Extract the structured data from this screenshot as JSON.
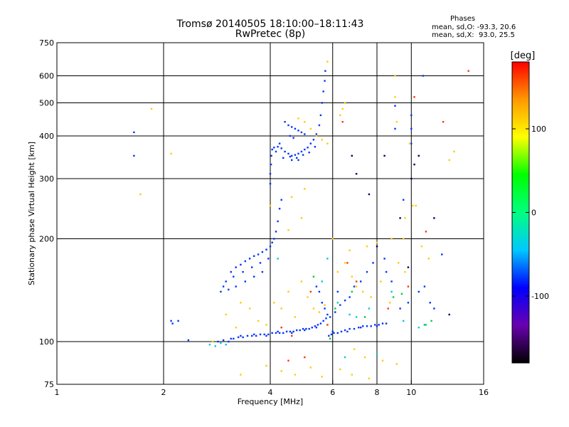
{
  "header": {
    "title_line1": "Tromsø 20140505 18:10:00–18:11:43",
    "title_line2": "RwPretec (8p)"
  },
  "phase_info": {
    "heading": "Phases",
    "line_o": "mean, sd,O: -93.3, 20.6",
    "line_x": "mean, sd,X:  93.0, 25.5"
  },
  "chart_data": {
    "type": "scatter",
    "xlabel": "Frequency [MHz]",
    "ylabel": "Stationary phase Virtual Height [km]",
    "x_scale": "log",
    "y_scale": "log",
    "xlim": [
      1,
      16
    ],
    "ylim": [
      75,
      750
    ],
    "x_ticks": [
      {
        "v": 1,
        "label": "1"
      },
      {
        "v": 2,
        "label": "2"
      },
      {
        "v": 4,
        "label": "4"
      },
      {
        "v": 6,
        "label": "6"
      },
      {
        "v": 8,
        "label": "8"
      },
      {
        "v": 10,
        "label": "10"
      },
      {
        "v": 16,
        "label": "16"
      }
    ],
    "x_gridlines": [
      2,
      4,
      6,
      8,
      10
    ],
    "y_ticks": [
      {
        "v": 75,
        "label": "75"
      },
      {
        "v": 100,
        "label": "100"
      },
      {
        "v": 200,
        "label": "200"
      },
      {
        "v": 300,
        "label": "300"
      },
      {
        "v": 400,
        "label": "400"
      },
      {
        "v": 500,
        "label": "500"
      },
      {
        "v": 600,
        "label": "600"
      },
      {
        "v": 750,
        "label": "750"
      }
    ],
    "y_gridlines": [
      100,
      200,
      300,
      400,
      500,
      600
    ],
    "grid": true,
    "colorbar": {
      "label": "[deg]",
      "range": [
        -180,
        180
      ],
      "ticks": [
        {
          "v": 100,
          "label": "100"
        },
        {
          "v": 0,
          "label": "0"
        },
        {
          "v": -100,
          "label": "-100"
        }
      ],
      "colors": [
        "#000000",
        "#6a00b0",
        "#0000ff",
        "#00c8ff",
        "#00ff80",
        "#00ff00",
        "#ffff00",
        "#ff9900",
        "#ff0000"
      ]
    },
    "series": [
      {
        "name": "O",
        "color": "#0033ff",
        "points": [
          [
            2.85,
            100
          ],
          [
            2.95,
            101
          ],
          [
            3.05,
            100
          ],
          [
            3.15,
            102
          ],
          [
            3.25,
            103
          ],
          [
            3.35,
            103
          ],
          [
            3.45,
            104
          ],
          [
            3.55,
            104
          ],
          [
            3.65,
            104
          ],
          [
            3.75,
            105
          ],
          [
            3.85,
            105
          ],
          [
            3.95,
            105
          ],
          [
            4.05,
            106
          ],
          [
            4.15,
            106
          ],
          [
            4.25,
            106
          ],
          [
            4.35,
            106
          ],
          [
            4.45,
            107
          ],
          [
            4.55,
            107
          ],
          [
            4.65,
            107
          ],
          [
            4.75,
            108
          ],
          [
            4.85,
            108
          ],
          [
            4.95,
            109
          ],
          [
            5.05,
            109
          ],
          [
            5.15,
            109
          ],
          [
            5.25,
            110
          ],
          [
            5.35,
            111
          ],
          [
            5.45,
            112
          ],
          [
            5.55,
            113
          ],
          [
            5.65,
            115
          ],
          [
            5.75,
            117
          ],
          [
            5.85,
            104
          ],
          [
            5.95,
            105
          ],
          [
            6.05,
            106
          ],
          [
            6.2,
            106
          ],
          [
            6.35,
            107
          ],
          [
            6.5,
            108
          ],
          [
            6.7,
            109
          ],
          [
            6.9,
            109
          ],
          [
            7.1,
            110
          ],
          [
            7.3,
            111
          ],
          [
            7.5,
            111
          ],
          [
            7.7,
            111
          ],
          [
            7.9,
            112
          ],
          [
            8.1,
            112
          ],
          [
            8.3,
            113
          ],
          [
            8.5,
            113
          ],
          [
            3.1,
            102
          ],
          [
            3.3,
            104
          ],
          [
            3.6,
            105
          ],
          [
            3.9,
            104
          ],
          [
            4.2,
            107
          ],
          [
            4.6,
            106
          ],
          [
            5.0,
            108
          ],
          [
            5.4,
            110
          ],
          [
            6.0,
            107
          ],
          [
            6.6,
            107
          ],
          [
            7.2,
            110
          ],
          [
            8.0,
            111
          ],
          [
            3.1,
            160
          ],
          [
            3.2,
            165
          ],
          [
            3.3,
            168
          ],
          [
            3.4,
            172
          ],
          [
            3.5,
            175
          ],
          [
            3.6,
            178
          ],
          [
            3.7,
            180
          ],
          [
            3.8,
            183
          ],
          [
            3.9,
            186
          ],
          [
            4.0,
            190
          ],
          [
            4.05,
            195
          ],
          [
            4.1,
            200
          ],
          [
            4.15,
            210
          ],
          [
            4.2,
            225
          ],
          [
            4.25,
            245
          ],
          [
            4.3,
            260
          ],
          [
            3.0,
            150
          ],
          [
            3.15,
            155
          ],
          [
            3.35,
            160
          ],
          [
            3.55,
            165
          ],
          [
            3.75,
            170
          ],
          [
            3.95,
            175
          ],
          [
            3.2,
            145
          ],
          [
            3.4,
            150
          ],
          [
            3.6,
            155
          ],
          [
            3.8,
            160
          ],
          [
            2.95,
            145
          ],
          [
            2.9,
            140
          ],
          [
            3.05,
            142
          ],
          [
            4.0,
            290
          ],
          [
            4.0,
            310
          ],
          [
            4.02,
            330
          ],
          [
            4.03,
            350
          ],
          [
            4.05,
            365
          ],
          [
            4.1,
            370
          ],
          [
            4.2,
            372
          ],
          [
            4.3,
            368
          ],
          [
            4.4,
            360
          ],
          [
            4.5,
            355
          ],
          [
            4.6,
            350
          ],
          [
            4.7,
            352
          ],
          [
            4.8,
            355
          ],
          [
            4.9,
            360
          ],
          [
            5.0,
            365
          ],
          [
            5.1,
            370
          ],
          [
            5.2,
            380
          ],
          [
            5.3,
            390
          ],
          [
            5.4,
            405
          ],
          [
            5.5,
            430
          ],
          [
            5.55,
            460
          ],
          [
            5.6,
            500
          ],
          [
            5.65,
            540
          ],
          [
            5.7,
            580
          ],
          [
            5.72,
            620
          ],
          [
            4.15,
            360
          ],
          [
            4.35,
            345
          ],
          [
            4.55,
            348
          ],
          [
            4.75,
            345
          ],
          [
            4.95,
            352
          ],
          [
            5.15,
            358
          ],
          [
            5.35,
            372
          ],
          [
            4.25,
            380
          ],
          [
            4.6,
            340
          ],
          [
            4.8,
            340
          ],
          [
            4.5,
            430
          ],
          [
            4.6,
            425
          ],
          [
            4.7,
            420
          ],
          [
            4.8,
            415
          ],
          [
            4.9,
            410
          ],
          [
            5.0,
            405
          ],
          [
            4.4,
            440
          ],
          [
            4.55,
            400
          ],
          [
            4.65,
            395
          ],
          [
            5.6,
            130
          ],
          [
            5.7,
            125
          ],
          [
            5.8,
            120
          ],
          [
            5.9,
            118
          ],
          [
            6.1,
            122
          ],
          [
            6.3,
            128
          ],
          [
            6.5,
            132
          ],
          [
            6.7,
            135
          ],
          [
            5.5,
            140
          ],
          [
            5.4,
            145
          ],
          [
            6.2,
            140
          ],
          [
            6.9,
            145
          ],
          [
            7.2,
            150
          ],
          [
            7.5,
            160
          ],
          [
            7.8,
            170
          ],
          [
            8.4,
            175
          ],
          [
            2.1,
            115
          ],
          [
            2.12,
            113
          ],
          [
            2.2,
            115
          ],
          [
            2.35,
            101
          ],
          [
            1.65,
            410
          ],
          [
            1.65,
            350
          ],
          [
            10.8,
            600
          ],
          [
            9.0,
            420
          ],
          [
            9.0,
            490
          ],
          [
            9.5,
            260
          ],
          [
            10.0,
            460
          ],
          [
            10.0,
            420
          ],
          [
            10.0,
            380
          ],
          [
            8.5,
            160
          ],
          [
            8.8,
            150
          ],
          [
            9.3,
            125
          ],
          [
            9.8,
            130
          ],
          [
            10.5,
            140
          ],
          [
            10.9,
            145
          ],
          [
            11.3,
            130
          ],
          [
            11.6,
            125
          ],
          [
            12.2,
            180
          ]
        ]
      },
      {
        "name": "X",
        "color": "#ffcc00",
        "points": [
          [
            1.72,
            270
          ],
          [
            1.85,
            480
          ],
          [
            2.1,
            355
          ],
          [
            2.75,
            100
          ],
          [
            3.0,
            120
          ],
          [
            3.2,
            110
          ],
          [
            3.3,
            130
          ],
          [
            3.5,
            125
          ],
          [
            3.7,
            115
          ],
          [
            3.9,
            112
          ],
          [
            4.1,
            130
          ],
          [
            4.3,
            125
          ],
          [
            4.5,
            140
          ],
          [
            4.7,
            118
          ],
          [
            4.9,
            150
          ],
          [
            5.1,
            135
          ],
          [
            5.3,
            125
          ],
          [
            5.5,
            122
          ],
          [
            5.7,
            128
          ],
          [
            4.8,
            450
          ],
          [
            5.0,
            440
          ],
          [
            5.2,
            420
          ],
          [
            5.4,
            400
          ],
          [
            5.6,
            390
          ],
          [
            5.8,
            380
          ],
          [
            6.3,
            460
          ],
          [
            6.4,
            480
          ],
          [
            6.5,
            500
          ],
          [
            6.0,
            200
          ],
          [
            6.2,
            160
          ],
          [
            6.5,
            170
          ],
          [
            6.8,
            155
          ],
          [
            7.0,
            145
          ],
          [
            7.3,
            140
          ],
          [
            7.7,
            135
          ],
          [
            8.2,
            150
          ],
          [
            8.7,
            130
          ],
          [
            9.2,
            170
          ],
          [
            9.6,
            160
          ],
          [
            6.7,
            185
          ],
          [
            7.5,
            190
          ],
          [
            8.0,
            195
          ],
          [
            8.8,
            200
          ],
          [
            9.0,
            600
          ],
          [
            9.0,
            520
          ],
          [
            9.1,
            440
          ],
          [
            9.6,
            230
          ],
          [
            9.5,
            200
          ],
          [
            10.3,
            250
          ],
          [
            10.7,
            190
          ],
          [
            11.2,
            175
          ],
          [
            12.8,
            340
          ],
          [
            13.2,
            360
          ],
          [
            5.8,
            660
          ],
          [
            6.9,
            95
          ],
          [
            7.4,
            90
          ],
          [
            8.3,
            88
          ],
          [
            9.1,
            86
          ],
          [
            3.9,
            85
          ],
          [
            4.3,
            82
          ],
          [
            4.7,
            80
          ],
          [
            5.2,
            84
          ],
          [
            5.6,
            79
          ],
          [
            6.3,
            83
          ],
          [
            6.8,
            80
          ],
          [
            7.6,
            78
          ],
          [
            3.3,
            80
          ],
          [
            4.0,
            250
          ],
          [
            4.6,
            265
          ],
          [
            5.0,
            280
          ],
          [
            4.9,
            230
          ],
          [
            4.5,
            212
          ],
          [
            10.1,
            250
          ],
          [
            9.9,
            380
          ]
        ]
      },
      {
        "name": "",
        "color": "#00cccc",
        "points": [
          [
            2.7,
            98
          ],
          [
            2.8,
            97
          ],
          [
            2.9,
            99
          ],
          [
            3.0,
            98
          ],
          [
            5.6,
            150
          ],
          [
            6.2,
            130
          ],
          [
            6.7,
            120
          ],
          [
            7.0,
            118
          ],
          [
            7.6,
            125
          ],
          [
            8.8,
            140
          ],
          [
            9.5,
            115
          ],
          [
            10.5,
            110
          ],
          [
            11.0,
            112
          ],
          [
            6.5,
            90
          ],
          [
            8.0,
            92
          ],
          [
            4.2,
            175
          ],
          [
            5.8,
            175
          ]
        ]
      },
      {
        "name": "",
        "color": "#ff3300",
        "points": [
          [
            4.3,
            110
          ],
          [
            4.6,
            104
          ],
          [
            5.2,
            140
          ],
          [
            5.8,
            112
          ],
          [
            6.4,
            440
          ],
          [
            6.6,
            170
          ],
          [
            7.0,
            150
          ],
          [
            8.6,
            125
          ],
          [
            9.8,
            145
          ],
          [
            10.2,
            520
          ],
          [
            11.0,
            210
          ],
          [
            14.5,
            620
          ],
          [
            12.3,
            440
          ],
          [
            5.0,
            90
          ],
          [
            4.5,
            88
          ]
        ]
      },
      {
        "name": "",
        "color": "#00cc33",
        "points": [
          [
            5.3,
            155
          ],
          [
            6.1,
            125
          ],
          [
            6.8,
            140
          ],
          [
            7.4,
            118
          ],
          [
            8.9,
            135
          ],
          [
            9.4,
            138
          ],
          [
            10.9,
            112
          ],
          [
            11.4,
            115
          ],
          [
            5.9,
            102
          ]
        ]
      },
      {
        "name": "",
        "color": "#000066",
        "points": [
          [
            7.0,
            310
          ],
          [
            7.6,
            270
          ],
          [
            8.0,
            190
          ],
          [
            8.4,
            350
          ],
          [
            9.3,
            230
          ],
          [
            9.8,
            165
          ],
          [
            10.2,
            330
          ],
          [
            10.5,
            350
          ],
          [
            11.6,
            230
          ],
          [
            12.8,
            120
          ],
          [
            6.8,
            350
          ],
          [
            10.0,
            300
          ]
        ]
      }
    ]
  }
}
